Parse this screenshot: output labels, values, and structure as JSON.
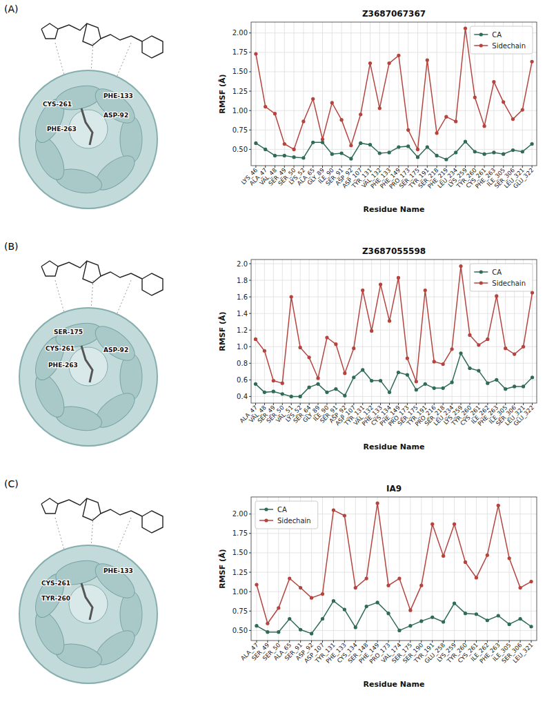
{
  "chart_data": [
    {
      "type": "line",
      "panel": "(A)",
      "title": "Z3687067367",
      "structure_labels": [
        "CYS-261",
        "PHE-133",
        "ASP-92",
        "PHE-263"
      ],
      "x_label": "Residue Name",
      "y_label": "RMSF (Å)",
      "categories": [
        "LYS_46",
        "ALA_47",
        "VAL_48",
        "SER_49",
        "SER_50",
        "LYS_52",
        "ALA_65",
        "GLY_89",
        "ILE_90",
        "SER_91",
        "ASP_92",
        "ASP_107",
        "TYR_131",
        "VAL_132",
        "PHE_133",
        "PHE_149",
        "PRO_173",
        "SER_175",
        "TYR_191",
        "SER_218",
        "PHE_219",
        "LEU_234",
        "LYS_259",
        "TYR_260",
        "CYS_261",
        "PHE_263",
        "ILE_305",
        "SER_306",
        "LEU_321",
        "GLU_322"
      ],
      "series": [
        {
          "name": "CA",
          "color": "#2f6b55",
          "marker": "circle",
          "values": [
            0.58,
            0.5,
            0.42,
            0.42,
            0.4,
            0.39,
            0.59,
            0.59,
            0.44,
            0.45,
            0.38,
            0.58,
            0.56,
            0.45,
            0.46,
            0.53,
            0.54,
            0.4,
            0.53,
            0.42,
            0.37,
            0.46,
            0.6,
            0.47,
            0.44,
            0.46,
            0.44,
            0.49,
            0.47,
            0.57
          ]
        },
        {
          "name": "Sidechain",
          "color": "#b5443f",
          "marker": "circle",
          "values": [
            1.73,
            1.05,
            0.96,
            0.57,
            0.5,
            0.86,
            1.15,
            0.63,
            1.1,
            0.88,
            0.55,
            0.95,
            1.61,
            1.03,
            1.61,
            1.71,
            0.75,
            0.5,
            1.65,
            0.71,
            0.92,
            0.86,
            2.06,
            1.17,
            0.8,
            1.37,
            1.11,
            0.89,
            1.01,
            1.63
          ]
        }
      ],
      "ylim": [
        0.29,
        2.14
      ],
      "yticks": [
        {
          "value": 0.5,
          "label": "0.50"
        },
        {
          "value": 0.75,
          "label": "0.75"
        },
        {
          "value": 1,
          "label": "1.00"
        },
        {
          "value": 1.25,
          "label": "1.25"
        },
        {
          "value": 1.5,
          "label": "1.50"
        },
        {
          "value": 1.75,
          "label": "1.75"
        },
        {
          "value": 2,
          "label": "2.00"
        }
      ],
      "grid": true,
      "legend": "upper right"
    },
    {
      "type": "line",
      "panel": "(B)",
      "title": "Z3687055598",
      "structure_labels": [
        "SER-175",
        "CYS-261",
        "PHE-263",
        "ASP-92"
      ],
      "x_label": "Residue Name",
      "y_label": "RMSF (Å)",
      "categories": [
        "ALA_47",
        "VAL_48",
        "SER_49",
        "SER_50",
        "VAL_51",
        "LYS_52",
        "SER_64",
        "GLY_89",
        "ILE_90",
        "SER_91",
        "ASP_92",
        "ASP_107",
        "TYR_131",
        "VAL_132",
        "PHE_133",
        "CYS_134",
        "PHE_149",
        "PRO_173",
        "SER_175",
        "TYR_191",
        "PRO_216",
        "SER_218",
        "LEU_234",
        "LYS_259",
        "TYR_260",
        "CYS_261",
        "ILE_262",
        "PHE_263",
        "ILE_305",
        "SER_306",
        "LEU_321",
        "GLU_322"
      ],
      "series": [
        {
          "name": "CA",
          "color": "#2f6b55",
          "marker": "circle",
          "values": [
            0.55,
            0.45,
            0.46,
            0.43,
            0.4,
            0.4,
            0.51,
            0.55,
            0.45,
            0.49,
            0.41,
            0.63,
            0.72,
            0.59,
            0.59,
            0.45,
            0.69,
            0.66,
            0.48,
            0.55,
            0.5,
            0.5,
            0.57,
            0.92,
            0.74,
            0.71,
            0.56,
            0.6,
            0.49,
            0.52,
            0.52,
            0.63
          ]
        },
        {
          "name": "Sidechain",
          "color": "#b5443f",
          "marker": "circle",
          "values": [
            1.09,
            0.95,
            0.59,
            0.56,
            1.6,
            0.99,
            0.87,
            0.62,
            1.11,
            1.03,
            0.68,
            0.98,
            1.68,
            1.19,
            1.75,
            1.31,
            1.83,
            0.86,
            0.58,
            1.68,
            0.82,
            0.79,
            0.97,
            1.97,
            1.14,
            1.02,
            1.09,
            1.61,
            0.98,
            0.91,
            1.0,
            1.65
          ]
        }
      ],
      "ylim": [
        0.32,
        2.05
      ],
      "yticks": [
        0.4,
        0.6,
        0.8,
        {
          "value": 1,
          "label": "1.0"
        },
        1.2,
        1.4,
        1.6,
        1.8,
        {
          "value": 2,
          "label": "2.0"
        }
      ],
      "grid": true,
      "legend": "upper right"
    },
    {
      "type": "line",
      "panel": "(C)",
      "title": "IA9",
      "structure_labels": [
        "CYS-261",
        "PHE-133",
        "TYR-260"
      ],
      "x_label": "Residue Name",
      "y_label": "RMSF (Å)",
      "categories": [
        "ALA_47",
        "SER_49",
        "SER_50",
        "ALA_65",
        "SER_91",
        "ASP_92",
        "ASP_107",
        "TYR_131",
        "PHE_133",
        "CYS_134",
        "SER_148",
        "PHE_149",
        "PRO_173",
        "VAL_174",
        "SER_175",
        "SER_190",
        "TYR_191",
        "GLU_258",
        "LYS_259",
        "TYR_260",
        "CYS_261",
        "ILE_262",
        "PHE_263",
        "ILE_305",
        "SER_306",
        "LEU_321"
      ],
      "series": [
        {
          "name": "CA",
          "color": "#2f6b55",
          "marker": "circle",
          "values": [
            0.56,
            0.48,
            0.48,
            0.65,
            0.51,
            0.46,
            0.65,
            0.88,
            0.77,
            0.54,
            0.81,
            0.86,
            0.72,
            0.5,
            0.56,
            0.62,
            0.67,
            0.61,
            0.85,
            0.72,
            0.71,
            0.63,
            0.69,
            0.58,
            0.65,
            0.55
          ]
        },
        {
          "name": "Sidechain",
          "color": "#b5443f",
          "marker": "circle",
          "values": [
            1.09,
            0.59,
            0.79,
            1.17,
            1.05,
            0.92,
            0.97,
            2.05,
            1.98,
            1.05,
            1.17,
            2.14,
            1.08,
            1.17,
            0.76,
            1.08,
            1.87,
            1.46,
            1.87,
            1.38,
            1.18,
            1.47,
            2.11,
            1.43,
            1.05,
            1.13
          ]
        }
      ],
      "ylim": [
        0.37,
        2.22
      ],
      "yticks": [
        {
          "value": 0.5,
          "label": "0.50"
        },
        {
          "value": 0.75,
          "label": "0.75"
        },
        {
          "value": 1,
          "label": "1.00"
        },
        {
          "value": 1.25,
          "label": "1.25"
        },
        {
          "value": 1.5,
          "label": "1.50"
        },
        {
          "value": 1.75,
          "label": "1.75"
        },
        {
          "value": 2,
          "label": "2.00"
        }
      ],
      "grid": true,
      "legend": "upper left"
    }
  ]
}
